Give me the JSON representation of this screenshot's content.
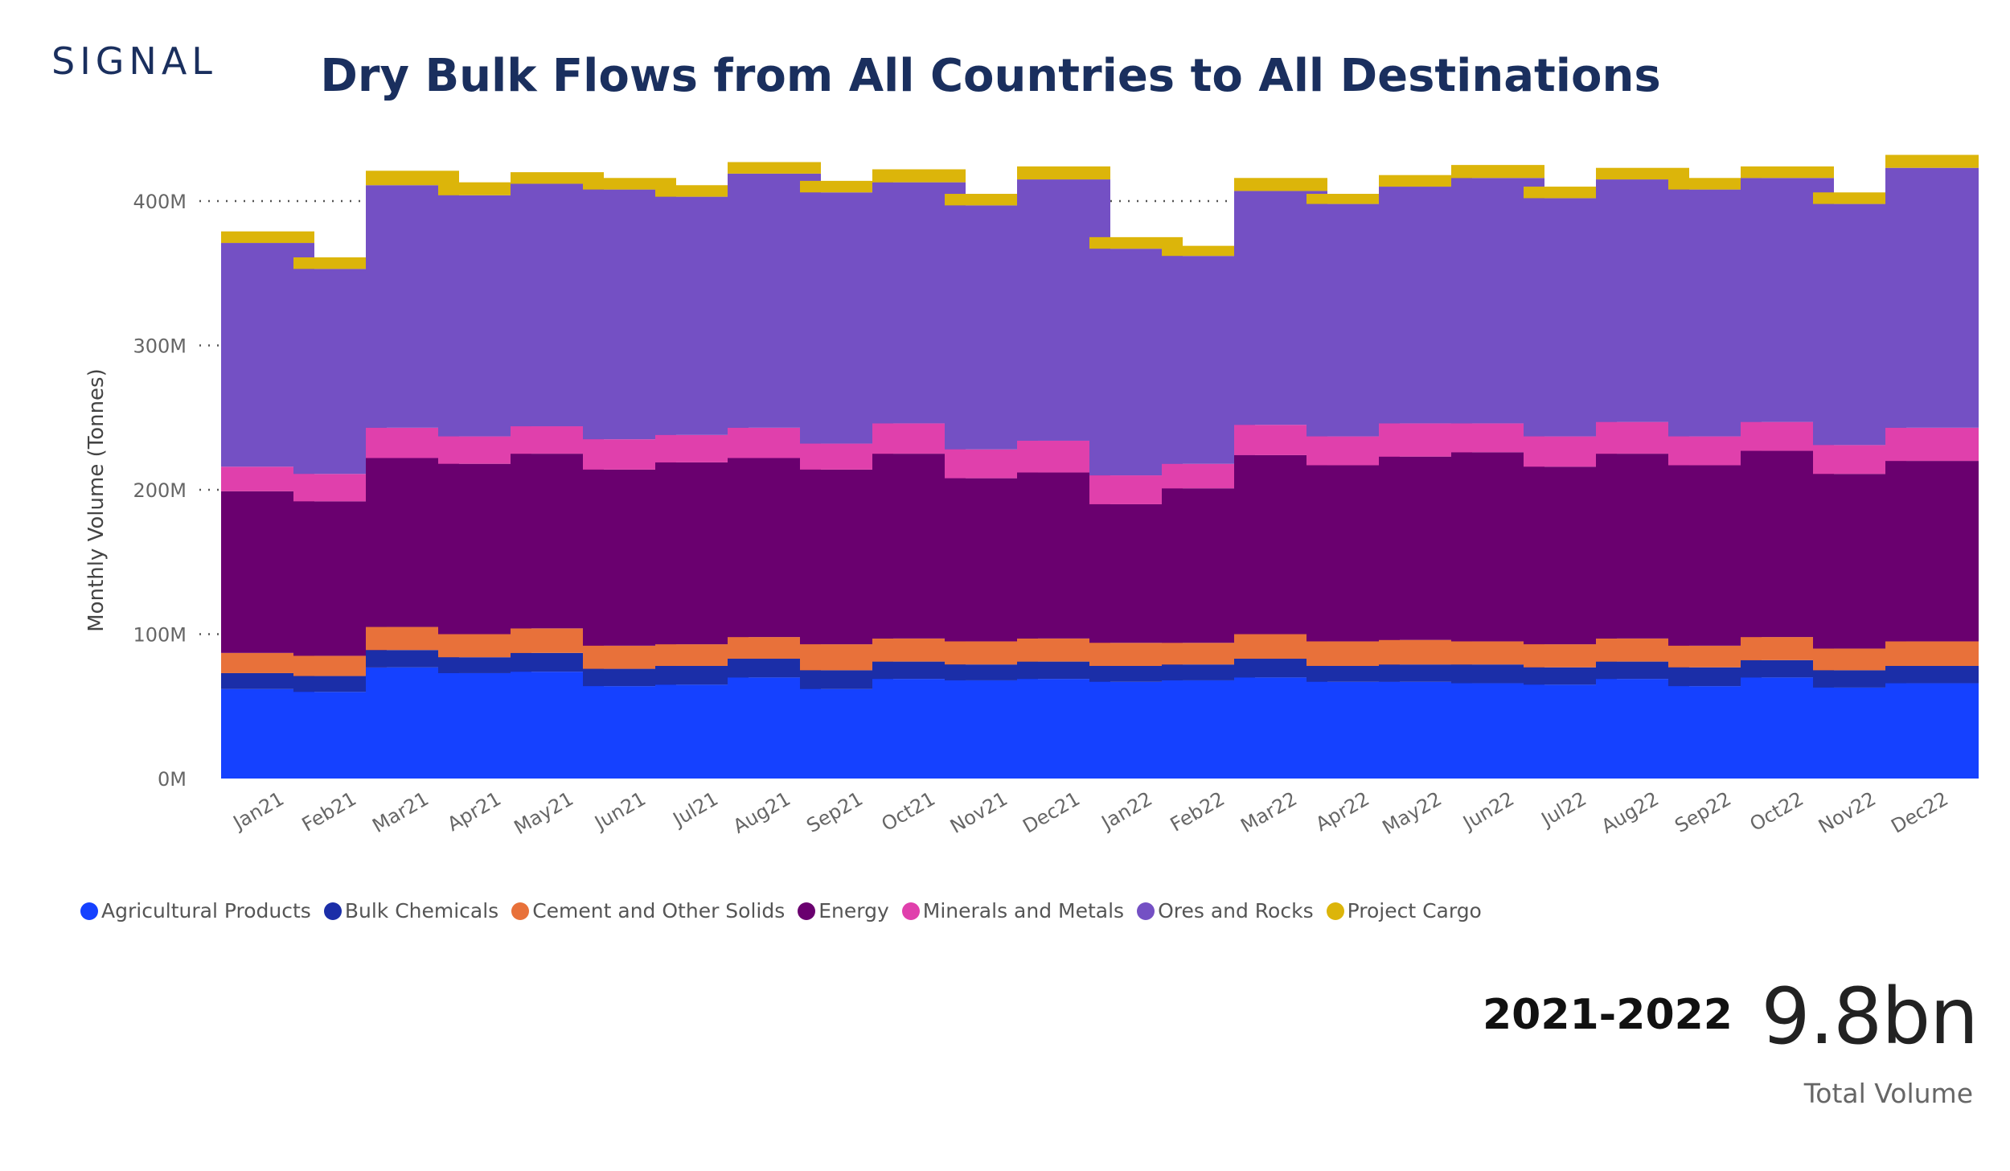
{
  "brand": {
    "logo_text": "SIGNAL",
    "logo_color": "#1a2f5e"
  },
  "kpi": {
    "period": "2021-2022",
    "value": "9.8bn",
    "caption": "Total Volume"
  },
  "chart_data": {
    "type": "bar",
    "stacked": true,
    "title": "Dry Bulk Flows from All Countries to All Destinations",
    "xlabel": "",
    "ylabel": "Monthly Volume (Tonnes)",
    "ylim": [
      0,
      440
    ],
    "yticks": [
      0,
      100,
      200,
      300,
      400
    ],
    "ytick_labels": [
      "0M",
      "100M",
      "200M",
      "300M",
      "400M"
    ],
    "grid": "horizontal dotted",
    "legend_position": "bottom-left",
    "categories": [
      "Jan21",
      "Feb21",
      "Mar21",
      "Apr21",
      "May21",
      "Jun21",
      "Jul21",
      "Aug21",
      "Sep21",
      "Oct21",
      "Nov21",
      "Dec21",
      "Jan22",
      "Feb22",
      "Mar22",
      "Apr22",
      "May22",
      "Jun22",
      "Jul22",
      "Aug22",
      "Sep22",
      "Oct22",
      "Nov22",
      "Dec22"
    ],
    "series": [
      {
        "name": "Agricultural Products",
        "color": "#1541ff",
        "values": [
          62,
          60,
          77,
          73,
          74,
          64,
          65,
          70,
          62,
          69,
          68,
          69,
          67,
          68,
          70,
          67,
          67,
          66,
          65,
          69,
          64,
          70,
          63,
          66
        ]
      },
      {
        "name": "Bulk Chemicals",
        "color": "#1b2ea8",
        "values": [
          11,
          11,
          12,
          11,
          13,
          12,
          13,
          13,
          13,
          12,
          11,
          12,
          11,
          11,
          13,
          11,
          12,
          13,
          12,
          12,
          13,
          12,
          12,
          12
        ]
      },
      {
        "name": "Cement and Other Solids",
        "color": "#e8713a",
        "values": [
          14,
          14,
          16,
          16,
          17,
          16,
          15,
          15,
          18,
          16,
          16,
          16,
          16,
          15,
          17,
          17,
          17,
          16,
          16,
          16,
          15,
          16,
          15,
          17
        ]
      },
      {
        "name": "Energy",
        "color": "#6a006f",
        "values": [
          112,
          107,
          117,
          118,
          121,
          122,
          126,
          124,
          121,
          128,
          113,
          115,
          96,
          107,
          124,
          122,
          127,
          131,
          123,
          128,
          125,
          129,
          121,
          125
        ]
      },
      {
        "name": "Minerals and Metals",
        "color": "#e040ac",
        "values": [
          17,
          19,
          21,
          19,
          19,
          21,
          19,
          21,
          18,
          21,
          20,
          22,
          20,
          17,
          21,
          20,
          23,
          20,
          21,
          22,
          20,
          20,
          20,
          23
        ]
      },
      {
        "name": "Ores and Rocks",
        "color": "#7450c4",
        "values": [
          155,
          142,
          168,
          167,
          168,
          173,
          165,
          176,
          174,
          167,
          169,
          181,
          157,
          144,
          162,
          161,
          164,
          170,
          165,
          168,
          171,
          169,
          167,
          180
        ]
      },
      {
        "name": "Project Cargo",
        "color": "#dcb50a",
        "values": [
          8,
          8,
          10,
          9,
          8,
          8,
          8,
          8,
          8,
          9,
          8,
          9,
          8,
          7,
          9,
          7,
          8,
          9,
          8,
          8,
          8,
          8,
          8,
          9
        ]
      }
    ]
  }
}
